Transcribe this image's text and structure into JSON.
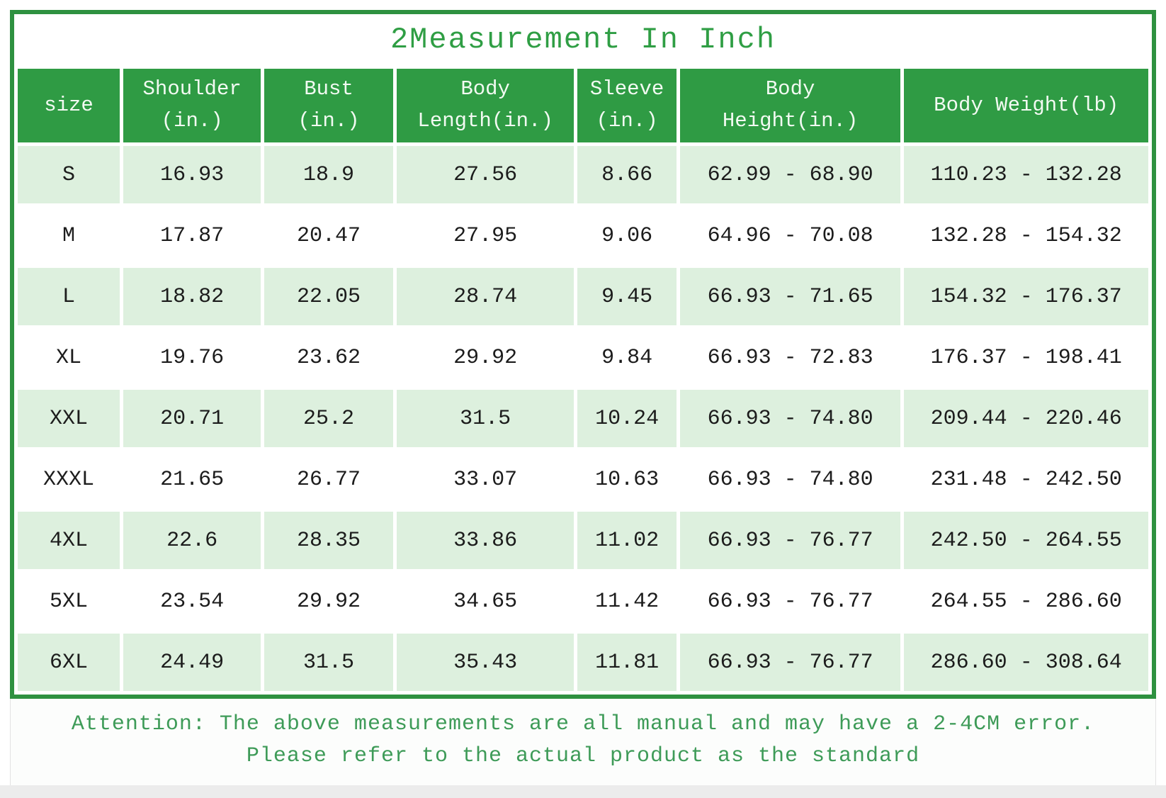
{
  "title": "2Measurement In Inch",
  "colors": {
    "frame_border_green": "#2e9140",
    "header_green": "#2f9b44",
    "title_text_green": "#2f9e44",
    "shaded_row_green": "#ddf0de",
    "note_text_green": "#3e9b58",
    "body_text": "#1c1c1c"
  },
  "table": {
    "columns": [
      {
        "lines": [
          "size"
        ]
      },
      {
        "lines": [
          "Shoulder",
          "(in.)"
        ]
      },
      {
        "lines": [
          "Bust",
          "(in.)"
        ]
      },
      {
        "lines": [
          "Body",
          "Length(in.)"
        ]
      },
      {
        "lines": [
          "Sleeve",
          "(in.)"
        ]
      },
      {
        "lines": [
          "Body",
          "Height(in.)"
        ]
      },
      {
        "lines": [
          "Body Weight(lb)"
        ]
      }
    ],
    "rows": [
      {
        "size": "S",
        "cells": [
          "16.93",
          "18.9",
          "27.56",
          "8.66",
          "62.99 - 68.90",
          "110.23 - 132.28"
        ]
      },
      {
        "size": "M",
        "cells": [
          "17.87",
          "20.47",
          "27.95",
          "9.06",
          "64.96 - 70.08",
          "132.28 - 154.32"
        ]
      },
      {
        "size": "L",
        "cells": [
          "18.82",
          "22.05",
          "28.74",
          "9.45",
          "66.93 - 71.65",
          "154.32 - 176.37"
        ]
      },
      {
        "size": "XL",
        "cells": [
          "19.76",
          "23.62",
          "29.92",
          "9.84",
          "66.93 - 72.83",
          "176.37 - 198.41"
        ]
      },
      {
        "size": "XXL",
        "cells": [
          "20.71",
          "25.2",
          "31.5",
          "10.24",
          "66.93 - 74.80",
          "209.44 - 220.46"
        ]
      },
      {
        "size": "XXXL",
        "cells": [
          "21.65",
          "26.77",
          "33.07",
          "10.63",
          "66.93 - 74.80",
          "231.48 - 242.50"
        ]
      },
      {
        "size": "4XL",
        "cells": [
          "22.6",
          "28.35",
          "33.86",
          "11.02",
          "66.93 - 76.77",
          "242.50 - 264.55"
        ]
      },
      {
        "size": "5XL",
        "cells": [
          "23.54",
          "29.92",
          "34.65",
          "11.42",
          "66.93 - 76.77",
          "264.55 - 286.60"
        ]
      },
      {
        "size": "6XL",
        "cells": [
          "24.49",
          "31.5",
          "35.43",
          "11.81",
          "66.93 - 76.77",
          "286.60 - 308.64"
        ]
      }
    ]
  },
  "note": {
    "line1": "Attention: The above measurements are all manual and may have a 2-4CM error.",
    "line2": "Please refer to the actual product as the standard"
  }
}
